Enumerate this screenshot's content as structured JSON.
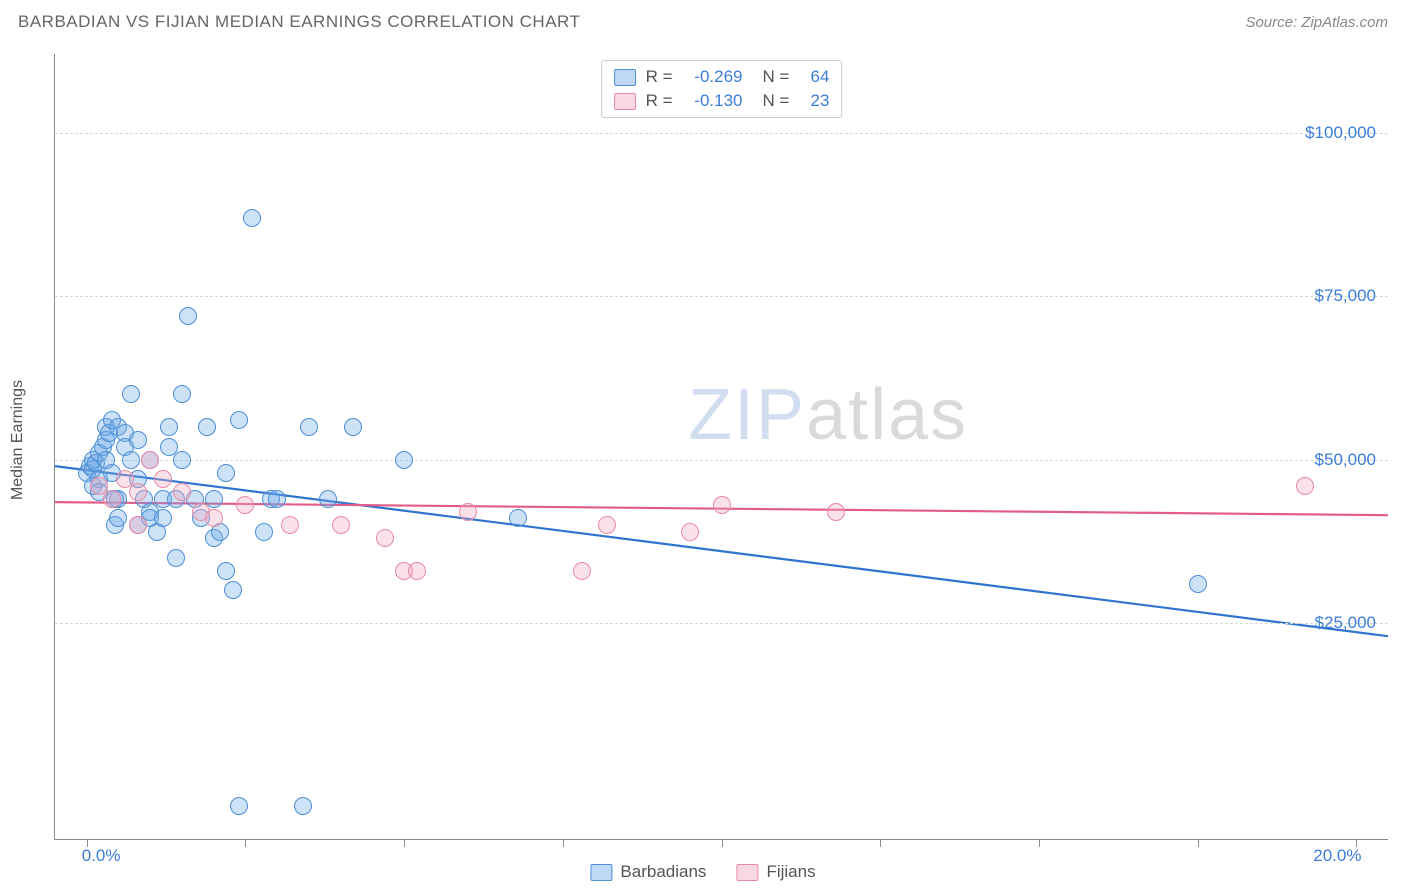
{
  "header": {
    "title": "BARBADIAN VS FIJIAN MEDIAN EARNINGS CORRELATION CHART",
    "source": "Source: ZipAtlas.com"
  },
  "watermark": {
    "zip": "ZIP",
    "atlas": "atlas"
  },
  "chart": {
    "type": "scatter",
    "background_color": "#ffffff",
    "grid_color": "#d8d8d8",
    "axis_color": "#888888",
    "yaxis": {
      "label": "Median Earnings",
      "min": -8000,
      "max": 112000,
      "ticks": [
        25000,
        50000,
        75000,
        100000
      ],
      "tick_labels": [
        "$25,000",
        "$50,000",
        "$75,000",
        "$100,000"
      ],
      "label_color": "#3b7dd8",
      "label_fontsize": 17
    },
    "xaxis": {
      "min": -0.5,
      "max": 20.5,
      "ticks": [
        0,
        2.5,
        5,
        7.5,
        10,
        12.5,
        15,
        17.5,
        20
      ],
      "end_labels": {
        "left": "0.0%",
        "right": "20.0%"
      },
      "label_color": "#3b7dd8"
    },
    "marker": {
      "radius": 9,
      "stroke_width": 1.2,
      "fill_opacity": 0.35
    },
    "series": [
      {
        "name": "Barbadians",
        "color": "#6fa8e8",
        "stroke": "#4d8fd6",
        "trend": {
          "y_at_xmin": 49000,
          "y_at_xmax": 23000,
          "stroke": "#2f74d0",
          "width": 2.2
        },
        "stats": {
          "r": "-0.269",
          "n": "64"
        },
        "points": [
          [
            0.0,
            48000
          ],
          [
            0.05,
            49000
          ],
          [
            0.1,
            48500
          ],
          [
            0.1,
            50000
          ],
          [
            0.1,
            46000
          ],
          [
            0.15,
            49500
          ],
          [
            0.2,
            51000
          ],
          [
            0.2,
            47000
          ],
          [
            0.2,
            45000
          ],
          [
            0.25,
            52000
          ],
          [
            0.3,
            55000
          ],
          [
            0.3,
            53000
          ],
          [
            0.3,
            50000
          ],
          [
            0.35,
            54000
          ],
          [
            0.4,
            56000
          ],
          [
            0.4,
            48000
          ],
          [
            0.45,
            40000
          ],
          [
            0.5,
            55000
          ],
          [
            0.5,
            44000
          ],
          [
            0.5,
            41000
          ],
          [
            0.6,
            54000
          ],
          [
            0.6,
            52000
          ],
          [
            0.7,
            50000
          ],
          [
            0.7,
            60000
          ],
          [
            0.8,
            47000
          ],
          [
            0.8,
            40000
          ],
          [
            0.8,
            53000
          ],
          [
            0.9,
            44000
          ],
          [
            1.0,
            42000
          ],
          [
            1.0,
            41000
          ],
          [
            1.0,
            50000
          ],
          [
            1.1,
            39000
          ],
          [
            1.2,
            44000
          ],
          [
            1.2,
            41000
          ],
          [
            1.3,
            55000
          ],
          [
            1.3,
            52000
          ],
          [
            1.4,
            35000
          ],
          [
            1.4,
            44000
          ],
          [
            1.5,
            60000
          ],
          [
            1.5,
            50000
          ],
          [
            1.6,
            72000
          ],
          [
            1.7,
            44000
          ],
          [
            1.8,
            41000
          ],
          [
            1.9,
            55000
          ],
          [
            2.0,
            38000
          ],
          [
            2.0,
            44000
          ],
          [
            2.1,
            39000
          ],
          [
            2.2,
            33000
          ],
          [
            2.2,
            48000
          ],
          [
            2.3,
            30000
          ],
          [
            2.4,
            56000
          ],
          [
            2.4,
            -3000
          ],
          [
            2.6,
            87000
          ],
          [
            2.8,
            39000
          ],
          [
            2.9,
            44000
          ],
          [
            3.0,
            44000
          ],
          [
            3.4,
            -3000
          ],
          [
            3.5,
            55000
          ],
          [
            3.8,
            44000
          ],
          [
            4.2,
            55000
          ],
          [
            5.0,
            50000
          ],
          [
            6.8,
            41000
          ],
          [
            17.5,
            31000
          ],
          [
            0.45,
            44000
          ]
        ]
      },
      {
        "name": "Fijians",
        "color": "#f4a8bd",
        "stroke": "#e88aa6",
        "trend": {
          "y_at_xmin": 43500,
          "y_at_xmax": 41500,
          "stroke": "#e25b8a",
          "width": 2.2
        },
        "stats": {
          "r": "-0.130",
          "n": "23"
        },
        "points": [
          [
            0.2,
            46000
          ],
          [
            0.4,
            44000
          ],
          [
            0.6,
            47000
          ],
          [
            0.8,
            45000
          ],
          [
            0.8,
            40000
          ],
          [
            1.0,
            50000
          ],
          [
            1.2,
            47000
          ],
          [
            1.5,
            45000
          ],
          [
            1.8,
            42000
          ],
          [
            2.0,
            41000
          ],
          [
            2.5,
            43000
          ],
          [
            3.2,
            40000
          ],
          [
            4.0,
            40000
          ],
          [
            4.7,
            38000
          ],
          [
            5.0,
            33000
          ],
          [
            5.2,
            33000
          ],
          [
            6.0,
            42000
          ],
          [
            7.8,
            33000
          ],
          [
            8.2,
            40000
          ],
          [
            9.5,
            39000
          ],
          [
            10.0,
            43000
          ],
          [
            11.8,
            42000
          ],
          [
            19.2,
            46000
          ]
        ]
      }
    ],
    "stats_labels": {
      "r_prefix": "R =",
      "n_prefix": "N ="
    },
    "legend": {
      "items": [
        "Barbadians",
        "Fijians"
      ]
    }
  }
}
